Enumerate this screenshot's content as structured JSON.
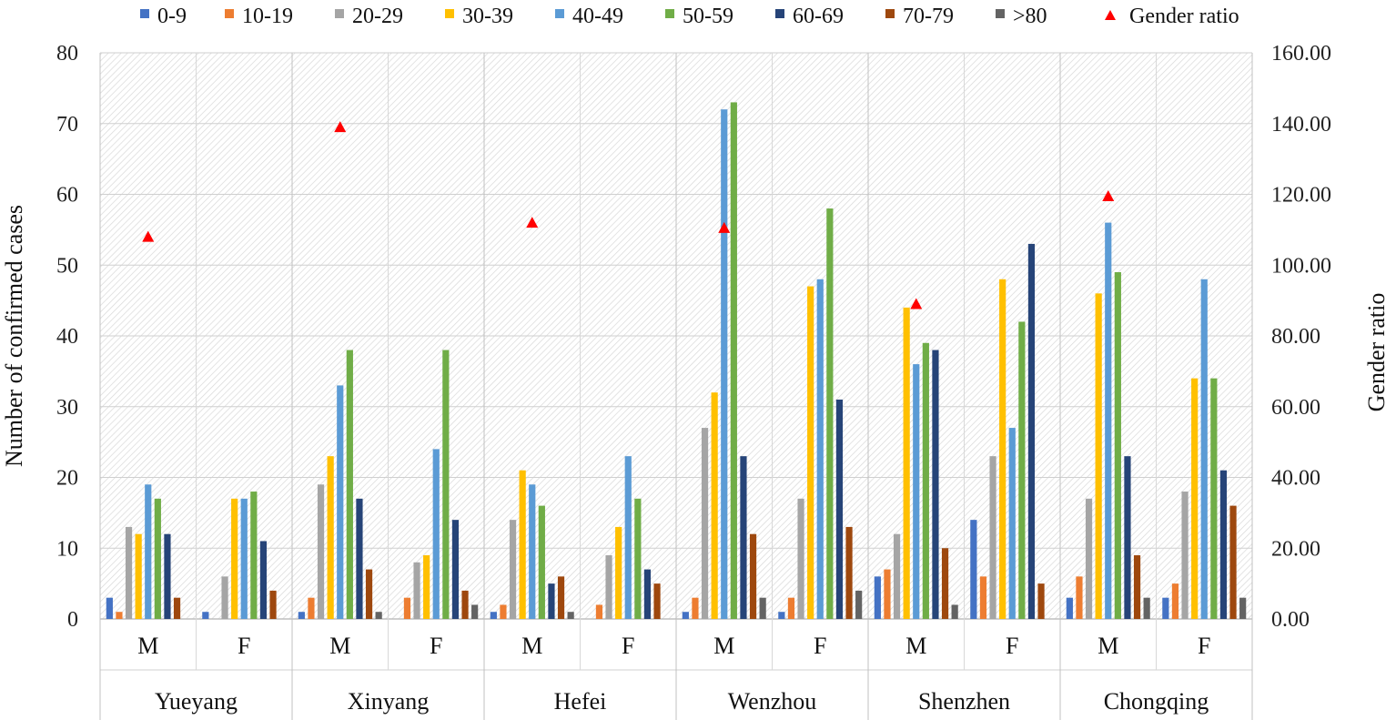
{
  "chart_data": {
    "type": "bar",
    "title": "",
    "ylabel": "Number of confirmed cases",
    "y2label": "Gender ratio",
    "ylim": [
      0,
      80
    ],
    "y2lim": [
      0,
      160
    ],
    "yticks": [
      "0",
      "10",
      "20",
      "30",
      "40",
      "50",
      "60",
      "70",
      "80"
    ],
    "y2ticks": [
      "0.00",
      "20.00",
      "40.00",
      "60.00",
      "80.00",
      "100.00",
      "120.00",
      "140.00",
      "160.00"
    ],
    "grid": true,
    "legend_position": "top",
    "cities": [
      "Yueyang",
      "Xinyang",
      "Hefei",
      "Wenzhou",
      "Shenzhen",
      "Chongqing"
    ],
    "sexes": [
      "M",
      "F"
    ],
    "categories": [
      "Yueyang M",
      "Yueyang F",
      "Xinyang M",
      "Xinyang F",
      "Hefei M",
      "Hefei F",
      "Wenzhou M",
      "Wenzhou F",
      "Shenzhen M",
      "Shenzhen F",
      "Chongqing M",
      "Chongqing F"
    ],
    "series": [
      {
        "name": "0-9",
        "color": "#4472C4",
        "values": [
          3,
          1,
          1,
          0,
          1,
          0,
          1,
          1,
          6,
          14,
          3,
          3
        ]
      },
      {
        "name": "10-19",
        "color": "#ED7D31",
        "values": [
          1,
          0,
          3,
          3,
          2,
          2,
          3,
          3,
          7,
          6,
          6,
          5
        ]
      },
      {
        "name": "20-29",
        "color": "#A5A5A5",
        "values": [
          13,
          6,
          19,
          8,
          14,
          9,
          27,
          17,
          12,
          23,
          17,
          18
        ]
      },
      {
        "name": "30-39",
        "color": "#FFC000",
        "values": [
          12,
          17,
          23,
          9,
          21,
          13,
          32,
          47,
          44,
          48,
          46,
          34
        ]
      },
      {
        "name": "40-49",
        "color": "#5B9BD5",
        "values": [
          19,
          17,
          33,
          24,
          19,
          23,
          72,
          48,
          36,
          27,
          56,
          48
        ]
      },
      {
        "name": "50-59",
        "color": "#70AD47",
        "values": [
          17,
          18,
          38,
          38,
          16,
          17,
          73,
          58,
          39,
          42,
          49,
          34
        ]
      },
      {
        "name": "60-69",
        "color": "#264478",
        "values": [
          12,
          11,
          17,
          14,
          5,
          7,
          23,
          31,
          38,
          53,
          23,
          21
        ]
      },
      {
        "name": "70-79",
        "color": "#9E480E",
        "values": [
          3,
          4,
          7,
          4,
          6,
          5,
          12,
          13,
          10,
          5,
          9,
          16
        ]
      },
      {
        "name": ">80",
        "color": "#636363",
        "values": [
          0,
          0,
          1,
          2,
          1,
          0,
          3,
          4,
          2,
          0,
          3,
          3
        ]
      }
    ],
    "gender_ratio": {
      "name": "Gender ratio",
      "color": "#FF0000",
      "values": [
        108.0,
        139.0,
        112.0,
        110.5,
        89.0,
        119.5
      ]
    }
  }
}
